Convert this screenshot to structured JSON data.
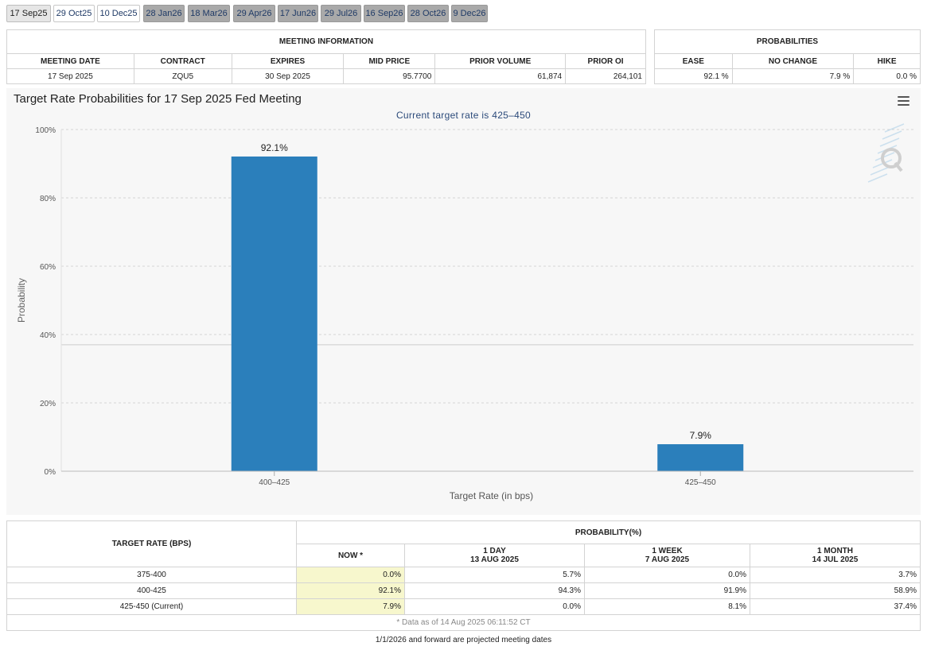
{
  "tabs": [
    {
      "label": "17 Sep25",
      "state": "active"
    },
    {
      "label": "29 Oct25",
      "state": "normal"
    },
    {
      "label": "10 Dec25",
      "state": "normal"
    },
    {
      "label": "28 Jan26",
      "state": "future"
    },
    {
      "label": "18 Mar26",
      "state": "future"
    },
    {
      "label": "29 Apr26",
      "state": "future"
    },
    {
      "label": "17 Jun26",
      "state": "future"
    },
    {
      "label": "29 Jul26",
      "state": "future"
    },
    {
      "label": "16 Sep26",
      "state": "future"
    },
    {
      "label": "28 Oct26",
      "state": "future"
    },
    {
      "label": "9 Dec26",
      "state": "future"
    }
  ],
  "meeting_info": {
    "header": "MEETING INFORMATION",
    "columns": [
      "MEETING DATE",
      "CONTRACT",
      "EXPIRES",
      "MID PRICE",
      "PRIOR VOLUME",
      "PRIOR OI"
    ],
    "row": [
      "17 Sep 2025",
      "ZQU5",
      "30 Sep 2025",
      "95.7700",
      "61,874",
      "264,101"
    ]
  },
  "probabilities": {
    "header": "PROBABILITIES",
    "columns": [
      "EASE",
      "NO CHANGE",
      "HIKE"
    ],
    "row": [
      "92.1 %",
      "7.9 %",
      "0.0 %"
    ]
  },
  "chart": {
    "title": "Target Rate Probabilities for 17 Sep 2025 Fed Meeting",
    "subtitle": "Current target rate is 425–450"
  },
  "chart_data": {
    "type": "bar",
    "categories": [
      "400–425",
      "425–450"
    ],
    "values": [
      92.1,
      7.9
    ],
    "data_labels": [
      "92.1%",
      "7.9%"
    ],
    "xlabel": "Target Rate (in bps)",
    "ylabel": "Probability",
    "ylim": [
      0,
      100
    ],
    "yticks": [
      "0%",
      "20%",
      "40%",
      "60%",
      "80%",
      "100%"
    ],
    "bar_color": "#2b7fbb",
    "grid": "dashed horizontal",
    "reference_line": 37
  },
  "rates_table": {
    "target_header": "TARGET RATE (BPS)",
    "prob_header": "PROBABILITY(%)",
    "now_header": "NOW *",
    "periods": [
      {
        "label": "1 DAY",
        "date": "13 AUG 2025"
      },
      {
        "label": "1 WEEK",
        "date": "7 AUG 2025"
      },
      {
        "label": "1 MONTH",
        "date": "14 JUL 2025"
      }
    ],
    "rows": [
      {
        "rate": "375-400",
        "now": "0.0%",
        "day": "5.7%",
        "week": "0.0%",
        "month": "3.7%"
      },
      {
        "rate": "400-425",
        "now": "92.1%",
        "day": "94.3%",
        "week": "91.9%",
        "month": "58.9%"
      },
      {
        "rate": "425-450 (Current)",
        "now": "7.9%",
        "day": "0.0%",
        "week": "8.1%",
        "month": "37.4%"
      }
    ],
    "data_note": "* Data as of 14 Aug 2025 06:11:52 CT"
  },
  "footer_note": "1/1/2026 and forward are projected meeting dates",
  "colors": {
    "now_highlight": "#f7f7cd",
    "future_tab": "#a9a9a9",
    "bar": "#2b7fbb"
  }
}
